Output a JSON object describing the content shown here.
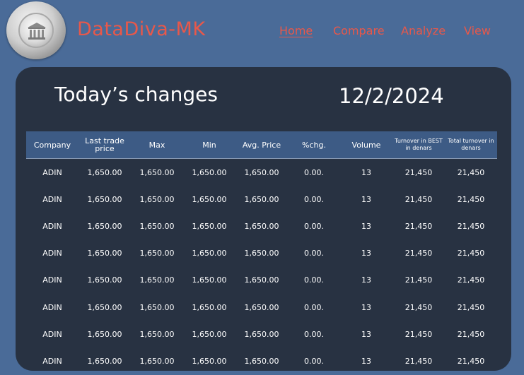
{
  "header": {
    "brand": "DataDiva-MK",
    "nav": [
      {
        "label": "Home",
        "active": true
      },
      {
        "label": "Compare",
        "active": false
      },
      {
        "label": "Analyze",
        "active": false
      },
      {
        "label": "View",
        "active": false
      }
    ],
    "logo_icon": "bank-building-icon"
  },
  "main": {
    "title": "Today’s changes",
    "date": "12/2/2024",
    "table": {
      "columns": [
        "Company",
        "Last trade price",
        "Max",
        "Min",
        "Avg. Price",
        "%chg.",
        "Volume",
        "Turnover in BEST in denars",
        "Total turnover in denars"
      ],
      "rows": [
        [
          "ADIN",
          "1,650.00",
          "1,650.00",
          "1,650.00",
          "1,650.00",
          "0.00.",
          "13",
          "21,450",
          "21,450"
        ],
        [
          "ADIN",
          "1,650.00",
          "1,650.00",
          "1,650.00",
          "1,650.00",
          "0.00.",
          "13",
          "21,450",
          "21,450"
        ],
        [
          "ADIN",
          "1,650.00",
          "1,650.00",
          "1,650.00",
          "1,650.00",
          "0.00.",
          "13",
          "21,450",
          "21,450"
        ],
        [
          "ADIN",
          "1,650.00",
          "1,650.00",
          "1,650.00",
          "1,650.00",
          "0.00.",
          "13",
          "21,450",
          "21,450"
        ],
        [
          "ADIN",
          "1,650.00",
          "1,650.00",
          "1,650.00",
          "1,650.00",
          "0.00.",
          "13",
          "21,450",
          "21,450"
        ],
        [
          "ADIN",
          "1,650.00",
          "1,650.00",
          "1,650.00",
          "1,650.00",
          "0.00.",
          "13",
          "21,450",
          "21,450"
        ],
        [
          "ADIN",
          "1,650.00",
          "1,650.00",
          "1,650.00",
          "1,650.00",
          "0.00.",
          "13",
          "21,450",
          "21,450"
        ],
        [
          "ADIN",
          "1,650.00",
          "1,650.00",
          "1,650.00",
          "1,650.00",
          "0.00.",
          "13",
          "21,450",
          "21,450"
        ]
      ]
    }
  },
  "colors": {
    "background": "#4a6b98",
    "panel": "#283242",
    "accent": "#e8584a",
    "table_header": "#3d5b85",
    "text": "#ffffff"
  }
}
